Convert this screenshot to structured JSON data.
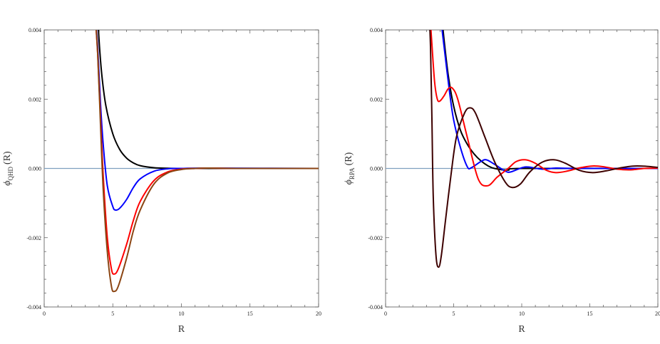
{
  "chart_data": [
    {
      "type": "line",
      "xlabel": "R",
      "ylabel_symbol": "ϕ",
      "ylabel_sub": "QHD",
      "ylabel_arg": "(R)",
      "xlim": [
        0,
        20
      ],
      "ylim": [
        -0.004,
        0.004
      ],
      "x_ticks": [
        0,
        5,
        10,
        15,
        20
      ],
      "x_tick_labels": [
        "0",
        "5",
        "10",
        "15",
        "20"
      ],
      "y_ticks": [
        -0.004,
        -0.002,
        0.0,
        0.002,
        0.004
      ],
      "y_tick_labels": [
        "-0.004",
        "-0.002",
        "0.000",
        "0.002",
        "0.004"
      ],
      "baseline": {
        "y": 0,
        "color": "#7f9fbf"
      },
      "series": [
        {
          "color": "#000000",
          "points": [
            [
              3.9,
              0.0045
            ],
            [
              4.0,
              0.0037
            ],
            [
              4.2,
              0.0027
            ],
            [
              4.5,
              0.0018
            ],
            [
              5.0,
              0.001
            ],
            [
              5.5,
              0.00055
            ],
            [
              6.0,
              0.0003
            ],
            [
              6.5,
              0.00016
            ],
            [
              7.0,
              8e-05
            ],
            [
              8.0,
              2e-05
            ],
            [
              9.0,
              5e-06
            ],
            [
              10.0,
              0.0
            ],
            [
              12.0,
              0.0
            ],
            [
              20.0,
              0.0
            ]
          ]
        },
        {
          "color": "#0000ff",
          "points": [
            [
              3.7,
              0.0045
            ],
            [
              3.9,
              0.0035
            ],
            [
              4.1,
              0.0019
            ],
            [
              4.3,
              0.0007
            ],
            [
              4.6,
              -0.0005
            ],
            [
              5.0,
              -0.0011
            ],
            [
              5.2,
              -0.0012
            ],
            [
              5.5,
              -0.00115
            ],
            [
              6.0,
              -0.0009
            ],
            [
              6.5,
              -0.00055
            ],
            [
              7.0,
              -0.0003
            ],
            [
              8.0,
              -8e-05
            ],
            [
              9.0,
              -1e-05
            ],
            [
              10.0,
              0.0
            ],
            [
              12.0,
              1e-05
            ],
            [
              20.0,
              0.0
            ]
          ]
        },
        {
          "color": "#ff0000",
          "points": [
            [
              3.7,
              0.0045
            ],
            [
              3.9,
              0.0033
            ],
            [
              4.1,
              0.0015
            ],
            [
              4.3,
              -0.0002
            ],
            [
              4.6,
              -0.002
            ],
            [
              4.9,
              -0.0029
            ],
            [
              5.1,
              -0.00305
            ],
            [
              5.4,
              -0.0029
            ],
            [
              6.0,
              -0.0022
            ],
            [
              6.5,
              -0.0015
            ],
            [
              7.0,
              -0.00095
            ],
            [
              8.0,
              -0.00035
            ],
            [
              9.0,
              -0.0001
            ],
            [
              10.0,
              -2e-05
            ],
            [
              11.0,
              0.0
            ],
            [
              12.0,
              1e-05
            ],
            [
              14.0,
              0.0
            ],
            [
              20.0,
              0.0
            ]
          ]
        },
        {
          "color": "#8b4513",
          "points": [
            [
              3.7,
              0.0045
            ],
            [
              3.9,
              0.0033
            ],
            [
              4.1,
              0.0013
            ],
            [
              4.3,
              -0.0006
            ],
            [
              4.6,
              -0.0024
            ],
            [
              4.9,
              -0.0034
            ],
            [
              5.1,
              -0.00355
            ],
            [
              5.4,
              -0.0034
            ],
            [
              6.0,
              -0.0026
            ],
            [
              6.5,
              -0.0018
            ],
            [
              7.0,
              -0.0012
            ],
            [
              8.0,
              -0.00045
            ],
            [
              9.0,
              -0.00013
            ],
            [
              10.0,
              -3e-05
            ],
            [
              11.0,
              0.0
            ],
            [
              12.0,
              1e-05
            ],
            [
              14.0,
              0.0
            ],
            [
              20.0,
              0.0
            ]
          ]
        }
      ]
    },
    {
      "type": "line",
      "xlabel": "R",
      "ylabel_symbol": "ϕ",
      "ylabel_sub": "RPA",
      "ylabel_arg": "(R)",
      "xlim": [
        0,
        20
      ],
      "ylim": [
        -0.004,
        0.004
      ],
      "x_ticks": [
        0,
        5,
        10,
        15,
        20
      ],
      "x_tick_labels": [
        "0",
        "5",
        "10",
        "15",
        "20"
      ],
      "y_ticks": [
        -0.004,
        -0.002,
        0.0,
        0.002,
        0.004
      ],
      "y_tick_labels": [
        "-0.004",
        "-0.002",
        "0.000",
        "0.002",
        "0.004"
      ],
      "baseline": {
        "y": 0,
        "color": "#7f9fbf"
      },
      "series": [
        {
          "color": "#000000",
          "points": [
            [
              4.1,
              0.0045
            ],
            [
              4.3,
              0.0037
            ],
            [
              4.6,
              0.0027
            ],
            [
              5.0,
              0.0018
            ],
            [
              5.5,
              0.0011
            ],
            [
              6.0,
              0.0007
            ],
            [
              6.5,
              0.00042
            ],
            [
              7.0,
              0.00022
            ],
            [
              7.5,
              8e-05
            ],
            [
              8.0,
              0.0
            ],
            [
              9.0,
              -5e-05
            ],
            [
              10.0,
              0.0
            ],
            [
              20.0,
              0.0
            ]
          ]
        },
        {
          "color": "#0000ff",
          "points": [
            [
              4.0,
              0.0045
            ],
            [
              4.3,
              0.0035
            ],
            [
              4.7,
              0.0022
            ],
            [
              5.0,
              0.0014
            ],
            [
              5.5,
              0.0006
            ],
            [
              6.0,
              5e-05
            ],
            [
              6.3,
              2e-05
            ],
            [
              7.0,
              0.0002
            ],
            [
              7.4,
              0.00025
            ],
            [
              8.0,
              0.00012
            ],
            [
              8.8,
              -8e-05
            ],
            [
              9.2,
              -0.0001
            ],
            [
              10.0,
              2e-05
            ],
            [
              10.5,
              4e-05
            ],
            [
              11.5,
              -2e-05
            ],
            [
              12.5,
              1e-05
            ],
            [
              14.0,
              0.0
            ],
            [
              20.0,
              0.0
            ]
          ]
        },
        {
          "color": "#ff0000",
          "points": [
            [
              3.25,
              0.0045
            ],
            [
              3.4,
              0.0036
            ],
            [
              3.6,
              0.0025
            ],
            [
              3.8,
              0.002
            ],
            [
              4.0,
              0.00195
            ],
            [
              4.3,
              0.0021
            ],
            [
              4.6,
              0.0023
            ],
            [
              4.9,
              0.00232
            ],
            [
              5.3,
              0.002
            ],
            [
              6.0,
              0.0009
            ],
            [
              6.8,
              -0.0003
            ],
            [
              7.5,
              -0.0005
            ],
            [
              8.2,
              -0.00025
            ],
            [
              9.0,
              0.0
            ],
            [
              9.6,
              0.0002
            ],
            [
              10.3,
              0.00025
            ],
            [
              11.0,
              0.00015
            ],
            [
              11.8,
              -5e-05
            ],
            [
              12.5,
              -0.00012
            ],
            [
              13.3,
              -8e-05
            ],
            [
              14.3,
              2e-05
            ],
            [
              15.2,
              7e-05
            ],
            [
              16.0,
              5e-05
            ],
            [
              17.0,
              -2e-05
            ],
            [
              18.0,
              -4e-05
            ],
            [
              19.0,
              0.0
            ],
            [
              20.0,
              1e-05
            ]
          ]
        },
        {
          "color": "#3d0000",
          "points": [
            [
              3.2,
              0.0045
            ],
            [
              3.3,
              0.0035
            ],
            [
              3.4,
              0.0015
            ],
            [
              3.5,
              -0.0008
            ],
            [
              3.7,
              -0.0025
            ],
            [
              3.9,
              -0.00285
            ],
            [
              4.1,
              -0.0025
            ],
            [
              4.4,
              -0.0015
            ],
            [
              4.8,
              -0.0002
            ],
            [
              5.2,
              0.0009
            ],
            [
              5.8,
              0.0016
            ],
            [
              6.2,
              0.00175
            ],
            [
              6.6,
              0.0016
            ],
            [
              7.3,
              0.0009
            ],
            [
              8.0,
              0.0002
            ],
            [
              8.8,
              -0.0004
            ],
            [
              9.3,
              -0.00055
            ],
            [
              9.9,
              -0.00045
            ],
            [
              10.6,
              -0.0001
            ],
            [
              11.5,
              0.00018
            ],
            [
              12.4,
              0.00025
            ],
            [
              13.2,
              0.00015
            ],
            [
              14.2,
              -5e-05
            ],
            [
              15.2,
              -0.00012
            ],
            [
              16.2,
              -7e-05
            ],
            [
              17.3,
              2e-05
            ],
            [
              18.3,
              7e-05
            ],
            [
              19.2,
              6e-05
            ],
            [
              20.0,
              3e-05
            ]
          ]
        }
      ]
    }
  ]
}
